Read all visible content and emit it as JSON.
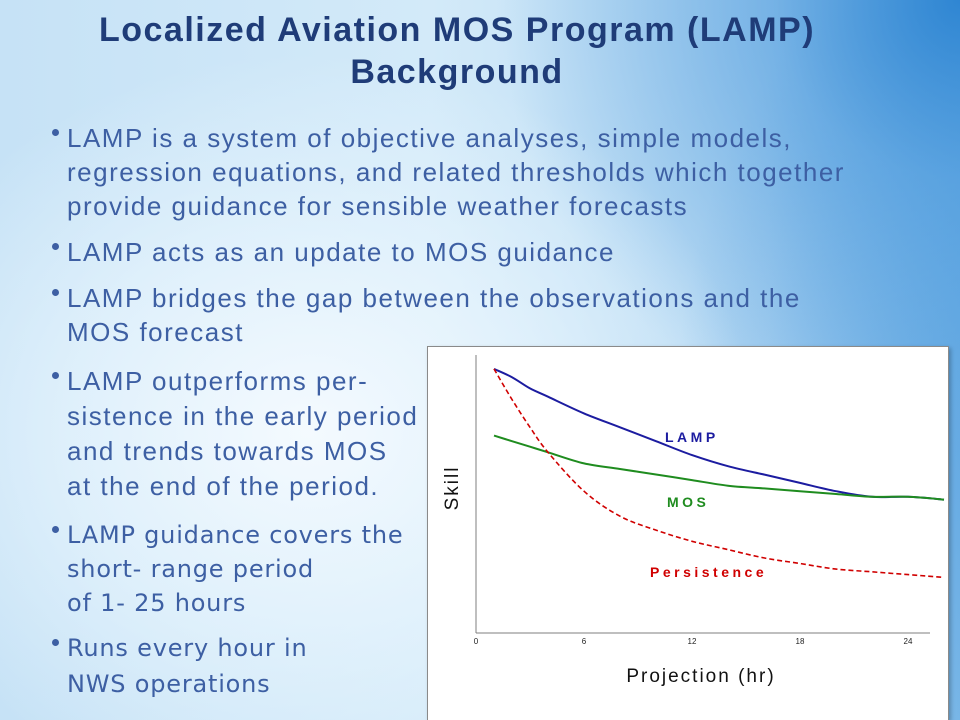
{
  "slide": {
    "title_line1": "Localized Aviation MOS Program (LAMP)",
    "title_line2": "Background",
    "bullets": [
      {
        "lines": [
          "LAMP is a system of objective analyses, simple models,",
          "regression equations, and related thresholds which together",
          "provide guidance for sensible weather forecasts"
        ]
      },
      {
        "lines": [
          "LAMP acts as an update to MOS guidance"
        ]
      },
      {
        "lines": [
          "LAMP bridges the gap between the observations and the",
          "MOS forecast"
        ]
      },
      {
        "lines": [
          "LAMP outperforms per-",
          "sistence in the early period",
          "and trends towards MOS",
          "at the end of the period."
        ]
      },
      {
        "lines": [
          "LAMP guidance covers the",
          "short- range period",
          "of 1- 25 hours"
        ]
      },
      {
        "lines": [
          "Runs every hour in",
          "NWS operations"
        ]
      }
    ]
  },
  "colors": {
    "title": "#1f3c78",
    "text": "#3d5fa3"
  },
  "chart_data": {
    "type": "line",
    "xlabel": "Projection (hr)",
    "ylabel": "Skill",
    "x_ticks": [
      0,
      6,
      12,
      18,
      24
    ],
    "xlim": [
      0,
      25
    ],
    "ylim": [
      0,
      1
    ],
    "grid": false,
    "legend": "inline",
    "x": [
      1,
      2,
      3,
      4,
      6,
      8,
      10,
      12,
      14,
      16,
      18,
      20,
      22,
      24,
      26
    ],
    "series": [
      {
        "name": "LAMP",
        "color": "#1c1ca0",
        "style": "solid",
        "values": [
          0.95,
          0.92,
          0.88,
          0.85,
          0.79,
          0.74,
          0.69,
          0.64,
          0.6,
          0.57,
          0.54,
          0.51,
          0.49,
          0.49,
          0.48
        ]
      },
      {
        "name": "MOS",
        "color": "#1f8c1f",
        "style": "solid",
        "values": [
          0.71,
          0.69,
          0.67,
          0.65,
          0.61,
          0.59,
          0.57,
          0.55,
          0.53,
          0.52,
          0.51,
          0.5,
          0.49,
          0.49,
          0.48
        ]
      },
      {
        "name": "Persistence",
        "color": "#d00000",
        "style": "dashed",
        "values": [
          0.95,
          0.84,
          0.74,
          0.65,
          0.51,
          0.42,
          0.37,
          0.33,
          0.3,
          0.27,
          0.25,
          0.23,
          0.22,
          0.21,
          0.2
        ]
      }
    ]
  }
}
